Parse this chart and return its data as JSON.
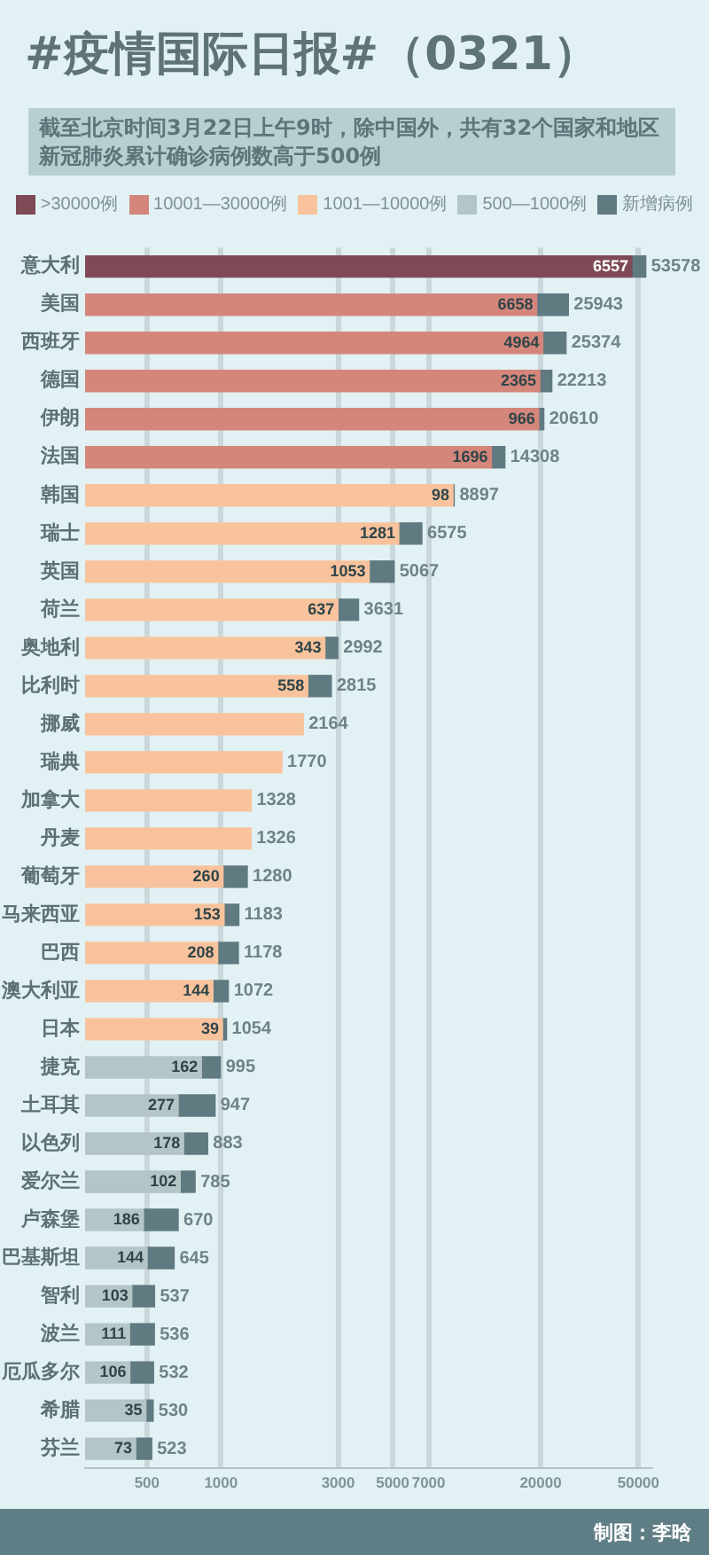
{
  "chart_data": {
    "type": "bar",
    "orientation": "horizontal",
    "stacked": true,
    "title": "#疫情国际日报#（0321）",
    "subtitle": "截至北京时间3月22日上午9时，除中国外，共有32个国家和地区新冠肺炎累计确诊病例数高于500例",
    "categories": [
      "意大利",
      "美国",
      "西班牙",
      "德国",
      "伊朗",
      "法国",
      "韩国",
      "瑞士",
      "英国",
      "荷兰",
      "奥地利",
      "比利时",
      "挪威",
      "瑞典",
      "加拿大",
      "丹麦",
      "葡萄牙",
      "马来西亚",
      "巴西",
      "澳大利亚",
      "日本",
      "捷克",
      "土耳其",
      "以色列",
      "爱尔兰",
      "卢森堡",
      "巴基斯坦",
      "智利",
      "波兰",
      "厄瓜多尔",
      "希腊",
      "芬兰"
    ],
    "series": [
      {
        "name": ">30000例",
        "color": "#7e4a56",
        "values": [
          47021,
          null,
          null,
          null,
          null,
          null,
          null,
          null,
          null,
          null,
          null,
          null,
          null,
          null,
          null,
          null,
          null,
          null,
          null,
          null,
          null,
          null,
          null,
          null,
          null,
          null,
          null,
          null,
          null,
          null,
          null,
          null
        ]
      },
      {
        "name": "10001—30000例",
        "color": "#d4867b",
        "values": [
          null,
          19285,
          20410,
          19848,
          19644,
          12612,
          null,
          null,
          null,
          null,
          null,
          null,
          null,
          null,
          null,
          null,
          null,
          null,
          null,
          null,
          null,
          null,
          null,
          null,
          null,
          null,
          null,
          null,
          null,
          null,
          null,
          null
        ]
      },
      {
        "name": "1001—10000例",
        "color": "#f8c39c",
        "values": [
          null,
          null,
          null,
          null,
          null,
          null,
          8799,
          5294,
          4014,
          2994,
          2649,
          2257,
          2164,
          1770,
          1328,
          1326,
          1020,
          1030,
          970,
          928,
          1015,
          null,
          null,
          null,
          null,
          null,
          null,
          null,
          null,
          null,
          null,
          null
        ]
      },
      {
        "name": "500—1000例",
        "color": "#b4c5c8",
        "values": [
          null,
          null,
          null,
          null,
          null,
          null,
          null,
          null,
          null,
          null,
          null,
          null,
          null,
          null,
          null,
          null,
          null,
          null,
          null,
          null,
          null,
          833,
          670,
          705,
          683,
          484,
          501,
          434,
          425,
          426,
          495,
          450
        ]
      },
      {
        "name": "新增病例",
        "color": "#5f7a80",
        "base": [
          47021,
          19285,
          20410,
          19848,
          19644,
          12612,
          8799,
          5294,
          4014,
          2994,
          2649,
          2257,
          null,
          null,
          null,
          null,
          1020,
          1030,
          970,
          928,
          1015,
          833,
          670,
          705,
          683,
          484,
          501,
          434,
          425,
          426,
          495,
          450
        ],
        "values": [
          6557,
          6658,
          4964,
          2365,
          966,
          1696,
          98,
          1281,
          1053,
          637,
          343,
          558,
          null,
          null,
          null,
          null,
          260,
          153,
          208,
          144,
          39,
          162,
          277,
          178,
          102,
          186,
          144,
          103,
          111,
          106,
          35,
          73
        ],
        "value_labels": [
          "6557",
          "6658",
          "4964",
          "2365",
          "966",
          "1696",
          "98",
          "1281",
          "1053",
          "637",
          "343",
          "558",
          null,
          null,
          null,
          null,
          "260",
          "153",
          "208",
          "144",
          "39",
          "162",
          "277",
          "178",
          "102",
          "186",
          "144",
          "103",
          "111",
          "106",
          "35",
          "73"
        ]
      }
    ],
    "totals": [
      "53578",
      "25943",
      "25374",
      "22213",
      "20610",
      "14308",
      "8897",
      "6575",
      "5067",
      "3631",
      "2992",
      "2815",
      "2164",
      "1770",
      "1328",
      "1326",
      "1280",
      "1183",
      "1178",
      "1072",
      "1054",
      "995",
      "947",
      "883",
      "785",
      "670",
      "645",
      "537",
      "536",
      "532",
      "530",
      "523"
    ],
    "xlim": [
      280,
      56000
    ],
    "xticks": [
      500,
      1000,
      3000,
      5000,
      7000,
      20000,
      50000
    ],
    "log": "x",
    "grid": "x",
    "legend": "top",
    "annotations": [
      "制图：李晗"
    ]
  }
}
